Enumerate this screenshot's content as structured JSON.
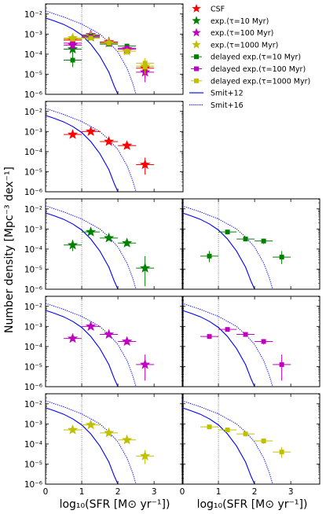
{
  "figure": {
    "ylabel": "Number density [Mpc⁻³ dex⁻¹]",
    "xlabel_left": "log₁₀(SFR [M⊙ yr⁻¹])",
    "xlabel_right": "log₁₀(SFR [M⊙ yr⁻¹])",
    "xlim": [
      0,
      3.8
    ],
    "ylim_log10": [
      -6,
      -1.5
    ],
    "xticks": [
      "0",
      "1",
      "2",
      "3"
    ],
    "yticks": [
      "10⁻⁶",
      "10⁻⁵",
      "10⁻⁴",
      "10⁻³",
      "10⁻²"
    ],
    "vline_x": 1.0
  },
  "legend": {
    "position": "right of top-left panel",
    "items": [
      {
        "label": "CSF",
        "color": "#ff0000",
        "marker": "star"
      },
      {
        "label": "exp.(τ=10 Myr)",
        "color": "#008000",
        "marker": "star"
      },
      {
        "label": "exp.(τ=100 Myr)",
        "color": "#c000c0",
        "marker": "star"
      },
      {
        "label": "exp.(τ=1000 Myr)",
        "color": "#c0c000",
        "marker": "star"
      },
      {
        "label": "delayed exp.(τ=10 Myr)",
        "color": "#008000",
        "marker": "square"
      },
      {
        "label": "delayed exp.(τ=100 Myr)",
        "color": "#c000c0",
        "marker": "square"
      },
      {
        "label": "delayed exp.(τ=1000 Myr)",
        "color": "#c0c000",
        "marker": "square"
      },
      {
        "label": "Smit+12",
        "color": "#0000ff",
        "marker": "solid-line"
      },
      {
        "label": "Smit+16",
        "color": "#0000ff",
        "marker": "dotted-line"
      }
    ]
  },
  "chart_data": {
    "type": "scatter",
    "x_unit": "log10(SFR [Msun/yr])",
    "y_unit": "log10(number density [Mpc^-3 dex^-1])",
    "reference_curves": [
      {
        "name": "Smit+12",
        "style": "solid",
        "color": "#0000ff",
        "x": [
          0,
          0.25,
          0.5,
          0.75,
          1.0,
          1.25,
          1.5,
          1.75,
          1.9,
          2.0
        ],
        "y": [
          -2.2,
          -2.35,
          -2.52,
          -2.75,
          -3.05,
          -3.5,
          -4.1,
          -4.9,
          -5.6,
          -6.2
        ]
      },
      {
        "name": "Smit+16",
        "style": "dotted",
        "color": "#0000ff",
        "x": [
          0,
          0.5,
          1.0,
          1.5,
          1.75,
          2.0,
          2.25,
          2.4,
          2.5
        ],
        "y": [
          -1.85,
          -2.15,
          -2.5,
          -3.0,
          -3.4,
          -3.9,
          -4.7,
          -5.4,
          -6.2
        ]
      }
    ],
    "panels": [
      {
        "id": "r1c1",
        "row": 1,
        "col": 1,
        "series": [
          {
            "name": "CSF",
            "color": "#ff0000",
            "marker": "star",
            "x": [
              0.75,
              1.25,
              1.75,
              2.25,
              2.75
            ],
            "y": [
              -3.3,
              -3.05,
              -3.4,
              -3.75,
              -4.7
            ],
            "xerr": 0.25,
            "yerr_lo": [
              0.12,
              0.1,
              0.12,
              0.18,
              0.5
            ],
            "yerr_hi": [
              0.1,
              0.1,
              0.1,
              0.15,
              0.35
            ]
          },
          {
            "name": "exp.(τ=10 Myr)",
            "color": "#008000",
            "marker": "star",
            "x": [
              0.75,
              1.25
            ],
            "y": [
              -3.75,
              -3.15
            ],
            "xerr": 0.25,
            "yerr_lo": [
              0.3,
              0.15
            ],
            "yerr_hi": [
              0.25,
              0.12
            ]
          },
          {
            "name": "exp.(τ=100 Myr)",
            "color": "#c000c0",
            "marker": "star",
            "x": [
              0.75,
              1.25,
              1.75,
              2.25,
              2.75
            ],
            "y": [
              -3.55,
              -3.05,
              -3.45,
              -3.75,
              -4.9
            ],
            "xerr": 0.25,
            "yerr_lo": [
              0.15,
              0.1,
              0.12,
              0.18,
              0.5
            ],
            "yerr_hi": [
              0.12,
              0.1,
              0.1,
              0.15,
              0.35
            ]
          },
          {
            "name": "exp.(τ=1000 Myr)",
            "color": "#c0c000",
            "marker": "star",
            "x": [
              0.75,
              1.25,
              1.75,
              2.25,
              2.75
            ],
            "y": [
              -3.2,
              -3.1,
              -3.45,
              -3.85,
              -4.6
            ],
            "xerr": 0.25,
            "yerr_lo": [
              0.12,
              0.1,
              0.12,
              0.18,
              0.4
            ],
            "yerr_hi": [
              0.1,
              0.1,
              0.1,
              0.15,
              0.3
            ]
          },
          {
            "name": "delayed exp.(τ=10 Myr)",
            "color": "#008000",
            "marker": "square",
            "x": [
              0.75,
              1.25,
              1.75,
              2.25
            ],
            "y": [
              -4.3,
              -3.1,
              -3.5,
              -3.6
            ],
            "xerr": 0.25,
            "yerr_lo": [
              0.35,
              0.12,
              0.12,
              0.15
            ],
            "yerr_hi": [
              0.25,
              0.1,
              0.1,
              0.12
            ]
          },
          {
            "name": "delayed exp.(τ=100 Myr)",
            "color": "#c000c0",
            "marker": "square",
            "x": [
              0.75,
              1.25,
              1.75,
              2.25
            ],
            "y": [
              -3.45,
              -3.15,
              -3.45,
              -3.7
            ],
            "xerr": 0.25,
            "yerr_lo": [
              0.12,
              0.1,
              0.12,
              0.15
            ],
            "yerr_hi": [
              0.1,
              0.1,
              0.1,
              0.12
            ]
          },
          {
            "name": "delayed exp.(τ=1000 Myr)",
            "color": "#c0c000",
            "marker": "square",
            "x": [
              0.75,
              1.25,
              1.75,
              2.25,
              2.75
            ],
            "y": [
              -3.25,
              -3.2,
              -3.45,
              -3.85,
              -4.45
            ],
            "xerr": 0.25,
            "yerr_lo": [
              0.12,
              0.1,
              0.12,
              0.18,
              0.3
            ],
            "yerr_hi": [
              0.1,
              0.1,
              0.1,
              0.15,
              0.25
            ]
          }
        ]
      },
      {
        "id": "r2c1",
        "row": 2,
        "col": 1,
        "series": [
          {
            "name": "CSF",
            "color": "#ff0000",
            "marker": "star",
            "x": [
              0.75,
              1.25,
              1.75,
              2.25,
              2.75
            ],
            "y": [
              -3.15,
              -3.0,
              -3.5,
              -3.7,
              -4.65
            ],
            "xerr": 0.25,
            "yerr_lo": [
              0.12,
              0.1,
              0.12,
              0.15,
              0.5
            ],
            "yerr_hi": [
              0.1,
              0.1,
              0.1,
              0.12,
              0.35
            ]
          }
        ]
      },
      {
        "id": "r3c1",
        "row": 3,
        "col": 1,
        "series": [
          {
            "name": "exp.(τ=10 Myr)",
            "color": "#008000",
            "marker": "star",
            "x": [
              0.75,
              1.25,
              1.75,
              2.25,
              2.75
            ],
            "y": [
              -3.8,
              -3.15,
              -3.45,
              -3.7,
              -4.95
            ],
            "xerr": 0.25,
            "yerr_lo": [
              0.3,
              0.12,
              0.12,
              0.15,
              0.9
            ],
            "yerr_hi": [
              0.25,
              0.1,
              0.1,
              0.12,
              0.6
            ]
          }
        ]
      },
      {
        "id": "r3c2",
        "row": 3,
        "col": 2,
        "series": [
          {
            "name": "delayed exp.(τ=10 Myr)",
            "color": "#008000",
            "marker": "square",
            "x": [
              0.75,
              1.25,
              1.75,
              2.25,
              2.75
            ],
            "y": [
              -4.35,
              -3.15,
              -3.5,
              -3.6,
              -4.4
            ],
            "xerr": 0.25,
            "yerr_lo": [
              0.3,
              0.12,
              0.12,
              0.15,
              0.35
            ],
            "yerr_hi": [
              0.25,
              0.1,
              0.1,
              0.12,
              0.3
            ]
          }
        ]
      },
      {
        "id": "r4c1",
        "row": 4,
        "col": 1,
        "series": [
          {
            "name": "exp.(τ=100 Myr)",
            "color": "#c000c0",
            "marker": "star",
            "x": [
              0.75,
              1.25,
              1.75,
              2.25,
              2.75
            ],
            "y": [
              -3.6,
              -3.0,
              -3.4,
              -3.75,
              -4.9
            ],
            "xerr": 0.25,
            "yerr_lo": [
              0.12,
              0.1,
              0.12,
              0.15,
              0.8
            ],
            "yerr_hi": [
              0.1,
              0.1,
              0.1,
              0.12,
              0.5
            ]
          }
        ]
      },
      {
        "id": "r4c2",
        "row": 4,
        "col": 2,
        "series": [
          {
            "name": "delayed exp.(τ=100 Myr)",
            "color": "#c000c0",
            "marker": "square",
            "x": [
              0.75,
              1.25,
              1.75,
              2.25,
              2.75
            ],
            "y": [
              -3.5,
              -3.15,
              -3.4,
              -3.75,
              -4.9
            ],
            "xerr": 0.25,
            "yerr_lo": [
              0.12,
              0.1,
              0.12,
              0.15,
              0.8
            ],
            "yerr_hi": [
              0.1,
              0.1,
              0.1,
              0.12,
              0.5
            ]
          }
        ]
      },
      {
        "id": "r5c1",
        "row": 5,
        "col": 1,
        "series": [
          {
            "name": "exp.(τ=1000 Myr)",
            "color": "#c0c000",
            "marker": "star",
            "x": [
              0.75,
              1.25,
              1.75,
              2.25,
              2.75
            ],
            "y": [
              -3.3,
              -3.05,
              -3.45,
              -3.8,
              -4.6
            ],
            "xerr": 0.25,
            "yerr_lo": [
              0.12,
              0.1,
              0.12,
              0.15,
              0.4
            ],
            "yerr_hi": [
              0.1,
              0.1,
              0.1,
              0.12,
              0.3
            ]
          }
        ]
      },
      {
        "id": "r5c2",
        "row": 5,
        "col": 2,
        "series": [
          {
            "name": "delayed exp.(τ=1000 Myr)",
            "color": "#c0c000",
            "marker": "square",
            "x": [
              0.75,
              1.25,
              1.75,
              2.25,
              2.75
            ],
            "y": [
              -3.15,
              -3.3,
              -3.5,
              -3.85,
              -4.4
            ],
            "xerr": 0.25,
            "yerr_lo": [
              0.12,
              0.1,
              0.12,
              0.15,
              0.3
            ],
            "yerr_hi": [
              0.1,
              0.1,
              0.1,
              0.12,
              0.25
            ]
          }
        ]
      }
    ]
  }
}
